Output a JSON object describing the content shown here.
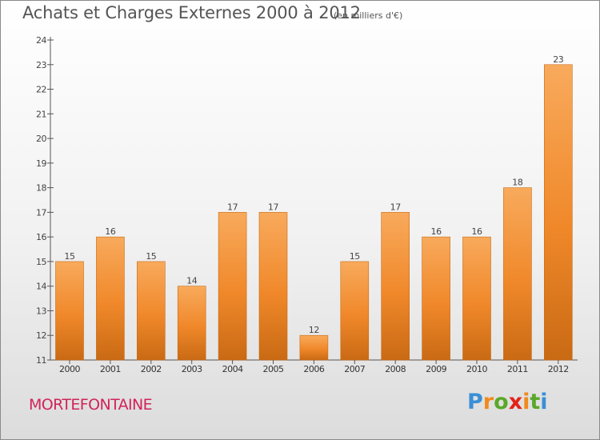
{
  "chart_data": {
    "type": "bar",
    "title": "Achats et Charges Externes 2000 à 2012",
    "subtitle": "(en milliers d'€)",
    "categories": [
      "2000",
      "2001",
      "2002",
      "2003",
      "2004",
      "2005",
      "2006",
      "2007",
      "2008",
      "2009",
      "2010",
      "2011",
      "2012"
    ],
    "values": [
      15,
      16,
      15,
      14,
      17,
      17,
      12,
      15,
      17,
      16,
      16,
      18,
      23
    ],
    "ylim": [
      11,
      24
    ],
    "yticks": [
      11,
      12,
      13,
      14,
      15,
      16,
      17,
      18,
      19,
      20,
      21,
      22,
      23,
      24
    ],
    "grid": false,
    "bar_color": "#f0882a",
    "bar_highlight": "#f8aa5c",
    "bar_shadow": "#c96a14"
  },
  "footer": {
    "commune": "MORTEFONTAINE",
    "commune_color": "#d1245a",
    "logo_text": "Proxiti",
    "logo_colors": [
      "#3a8fd6",
      "#f08a1d",
      "#5aa82a",
      "#e2231a",
      "#f08a1d",
      "#5aa82a",
      "#3a8fd6"
    ]
  }
}
